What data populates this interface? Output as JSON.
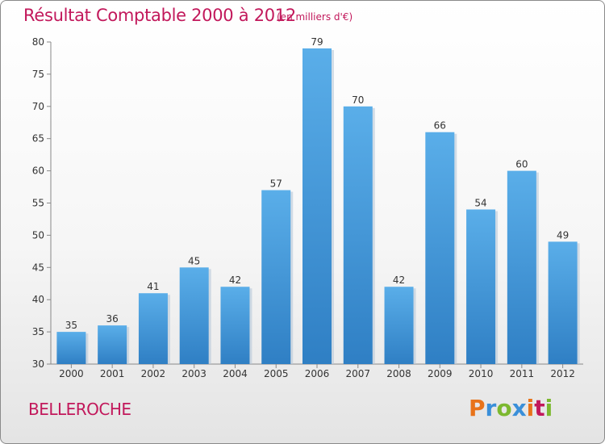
{
  "chart_data": {
    "type": "bar",
    "title": "Résultat Comptable 2000 à 2012",
    "subtitle": "(en milliers d'€)",
    "categories": [
      "2000",
      "2001",
      "2002",
      "2003",
      "2004",
      "2005",
      "2006",
      "2007",
      "2008",
      "2009",
      "2010",
      "2011",
      "2012"
    ],
    "values": [
      35,
      36,
      41,
      45,
      42,
      57,
      79,
      70,
      42,
      66,
      54,
      60,
      49
    ],
    "ylim": [
      30,
      80
    ],
    "yticks": [
      30,
      35,
      40,
      45,
      50,
      55,
      60,
      65,
      70,
      75,
      80
    ],
    "xlabel": "",
    "ylabel": "",
    "grid": false,
    "bar_color": "#3a8fd9"
  },
  "footer": {
    "commune": "BELLEROCHE",
    "logo_letters": [
      "P",
      "r",
      "o",
      "x",
      "i",
      "t",
      "i"
    ],
    "logo_colors": [
      "#e8731a",
      "#3a8fd9",
      "#7cb82f",
      "#3a8fd9",
      "#e8731a",
      "#c2185b",
      "#7cb82f"
    ]
  }
}
